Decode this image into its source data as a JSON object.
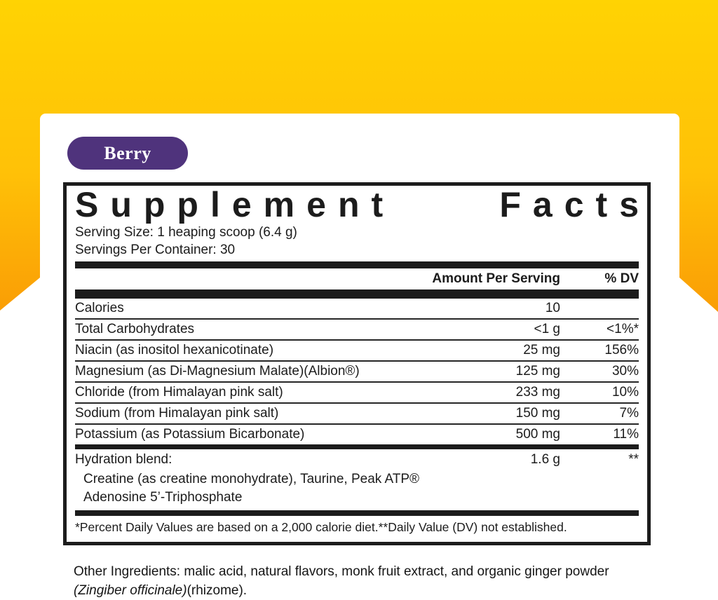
{
  "badge": {
    "label": "Berry"
  },
  "panel": {
    "title": "Supplement Facts",
    "serving_size": "Serving Size: 1 heaping scoop (6.4 g)",
    "servings_per_container": "Servings Per Container: 30",
    "columns": {
      "amount": "Amount Per Serving",
      "dv": "% DV"
    },
    "rows": [
      {
        "name": "Calories",
        "amount": "10",
        "dv": ""
      },
      {
        "name": "Total Carbohydrates",
        "amount": "<1 g",
        "dv": "<1%*"
      },
      {
        "name": "Niacin (as inositol hexanicotinate)",
        "amount": "25 mg",
        "dv": "156%"
      },
      {
        "name": "Magnesium (as Di-Magnesium Malate)(Albion®)",
        "amount": "125 mg",
        "dv": "30%"
      },
      {
        "name": "Chloride (from Himalayan pink salt)",
        "amount": "233 mg",
        "dv": "10%"
      },
      {
        "name": "Sodium (from Himalayan pink salt)",
        "amount": "150 mg",
        "dv": "7%"
      },
      {
        "name": "Potassium (as Potassium Bicarbonate)",
        "amount": "500 mg",
        "dv": "11%"
      }
    ],
    "blend": {
      "name": "Hydration blend:",
      "amount": "1.6 g",
      "dv": "**",
      "sub_lines": [
        "Creatine (as creatine monohydrate), Taurine, Peak ATP®",
        "Adenosine 5’-Triphosphate"
      ]
    },
    "footnote": "*Percent Daily Values are based on a 2,000 calorie diet.**Daily Value (DV) not established."
  },
  "other_ingredients": {
    "prefix": "Other Ingredients: malic acid, natural flavors, monk fruit extract, and organic ginger powder ",
    "italic": "(Zingiber officinale)",
    "suffix": "(rhizome)."
  },
  "colors": {
    "background_gradient_top": "#FFD303",
    "background_gradient_bottom": "#FA9D05",
    "badge_purple": "#4F337C",
    "label_ink": "#1C1C1C",
    "card_white": "#FFFFFF"
  }
}
